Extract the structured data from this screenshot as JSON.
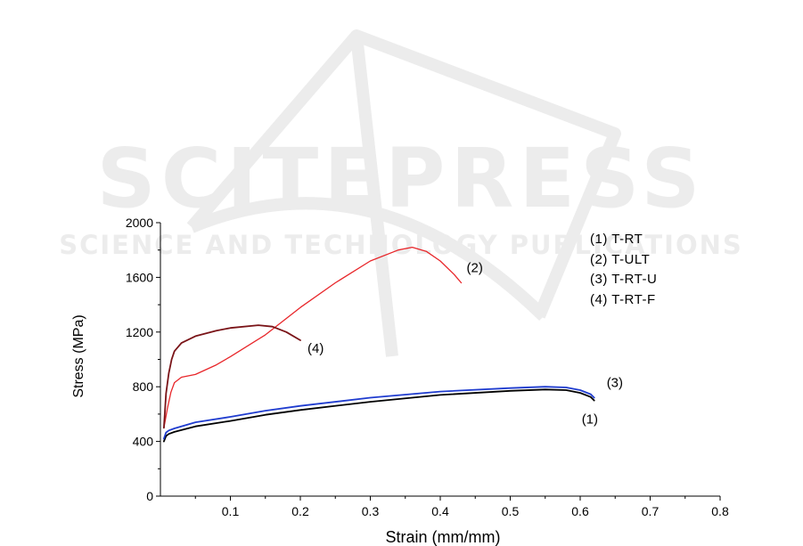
{
  "watermark": {
    "main_text": "SCITEPRESS",
    "sub_text": "SCIENCE AND TECHNOLOGY PUBLICATIONS"
  },
  "chart_data": {
    "type": "line",
    "xlabel": "Strain (mm/mm)",
    "ylabel": "Stress (MPa)",
    "xlim": [
      0,
      0.8
    ],
    "ylim": [
      0,
      2000
    ],
    "x_ticks": [
      0.1,
      0.2,
      0.3,
      0.4,
      0.5,
      0.6,
      0.7,
      0.8
    ],
    "x_tick_labels": [
      "0.1",
      "0.2",
      "0.3",
      "0.4",
      "0.5",
      "0.6",
      "0.7",
      "0.8"
    ],
    "y_ticks": [
      0,
      400,
      800,
      1200,
      1600,
      2000
    ],
    "y_tick_labels": [
      "0",
      "400",
      "800",
      "1200",
      "1600",
      "2000"
    ],
    "legend_position": "top-right",
    "legend": [
      "(1) T-RT",
      "(2) T-ULT",
      "(3) T-RT-U",
      "(4) T-RT-F"
    ],
    "series": [
      {
        "name": "(1) T-RT",
        "label": "(1)",
        "color": "#000000",
        "x": [
          0.005,
          0.008,
          0.012,
          0.02,
          0.05,
          0.1,
          0.15,
          0.2,
          0.3,
          0.4,
          0.5,
          0.55,
          0.58,
          0.6,
          0.615,
          0.62
        ],
        "y": [
          400,
          440,
          455,
          470,
          510,
          550,
          595,
          630,
          690,
          740,
          770,
          780,
          775,
          755,
          725,
          700
        ]
      },
      {
        "name": "(2) T-ULT",
        "label": "(2)",
        "color": "#e8262a",
        "x": [
          0.005,
          0.01,
          0.015,
          0.02,
          0.03,
          0.05,
          0.08,
          0.1,
          0.15,
          0.2,
          0.25,
          0.3,
          0.34,
          0.36,
          0.38,
          0.4,
          0.42,
          0.43
        ],
        "y": [
          500,
          640,
          760,
          830,
          870,
          890,
          960,
          1020,
          1180,
          1380,
          1560,
          1720,
          1800,
          1820,
          1790,
          1720,
          1620,
          1560
        ]
      },
      {
        "name": "(3) T-RT-U",
        "label": "(3)",
        "color": "#1f3ccf",
        "x": [
          0.005,
          0.008,
          0.012,
          0.02,
          0.05,
          0.1,
          0.15,
          0.2,
          0.3,
          0.4,
          0.5,
          0.55,
          0.58,
          0.6,
          0.615,
          0.62
        ],
        "y": [
          420,
          465,
          480,
          495,
          540,
          580,
          625,
          660,
          720,
          765,
          790,
          800,
          795,
          775,
          745,
          720
        ]
      },
      {
        "name": "(4) T-RT-F",
        "label": "(4)",
        "color": "#7a1418",
        "x": [
          0.005,
          0.008,
          0.012,
          0.016,
          0.02,
          0.03,
          0.05,
          0.08,
          0.1,
          0.14,
          0.16,
          0.18,
          0.2
        ],
        "y": [
          500,
          750,
          900,
          1000,
          1060,
          1120,
          1170,
          1210,
          1230,
          1250,
          1240,
          1200,
          1140
        ]
      }
    ]
  }
}
